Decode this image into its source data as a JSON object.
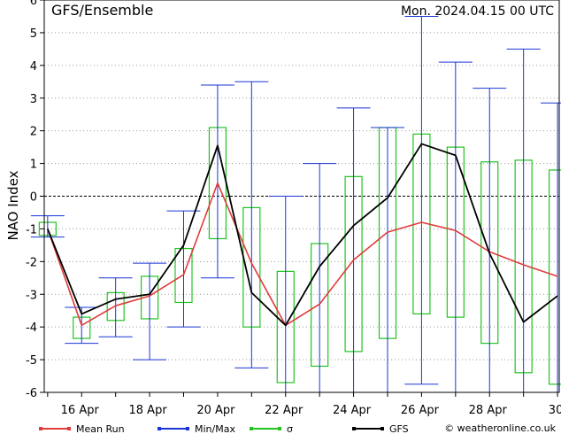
{
  "header": {
    "title": "GFS/Ensemble",
    "timestamp": "Mon. 2024.04.15   00 UTC"
  },
  "chart_data": {
    "type": "line",
    "ylabel": "NAO Index",
    "ylim": [
      -6,
      6
    ],
    "yticks": [
      6,
      5,
      4,
      3,
      2,
      1,
      0,
      -1,
      -2,
      -3,
      -4,
      -5,
      -6
    ],
    "xlim": [
      14.9,
      30.05
    ],
    "xticks": [
      {
        "x": 16,
        "label": "16 Apr"
      },
      {
        "x": 18,
        "label": "18 Apr"
      },
      {
        "x": 20,
        "label": "20 Apr"
      },
      {
        "x": 22,
        "label": "22 Apr"
      },
      {
        "x": 24,
        "label": "24 Apr"
      },
      {
        "x": 26,
        "label": "26 Apr"
      },
      {
        "x": 28,
        "label": "28 Apr"
      },
      {
        "x": 30,
        "label": "30"
      }
    ],
    "grid": true,
    "x": [
      15,
      16,
      17,
      18,
      19,
      20,
      21,
      22,
      23,
      24,
      25,
      26,
      27,
      28,
      29,
      30
    ],
    "series": [
      {
        "name": "Mean Run",
        "color": "#e03c3c",
        "values": [
          -1.0,
          -3.95,
          -3.35,
          -3.05,
          -2.4,
          0.4,
          -2.05,
          -3.95,
          -3.3,
          -1.95,
          -1.1,
          -0.8,
          -1.05,
          -1.7,
          -2.1,
          -2.45
        ]
      },
      {
        "name": "GFS",
        "color": "#000000",
        "values": [
          -1.0,
          -3.6,
          -3.15,
          -3.0,
          -1.5,
          1.55,
          -2.95,
          -3.95,
          -2.15,
          -0.9,
          -0.05,
          1.6,
          1.25,
          -1.75,
          -3.85,
          -3.05
        ]
      }
    ],
    "minmax": {
      "name": "Min/Max",
      "color": "#1a35d6",
      "min": [
        -1.25,
        -4.5,
        -4.3,
        -5.0,
        -4.0,
        -2.5,
        -5.25,
        -6.0,
        -6.0,
        -6.0,
        -6.0,
        -5.75,
        -6.0,
        -6.0,
        -6.0,
        -6.0
      ],
      "max": [
        -0.6,
        -3.4,
        -2.5,
        -2.05,
        -0.45,
        3.4,
        3.5,
        0.0,
        1.0,
        2.7,
        2.1,
        5.5,
        4.1,
        3.3,
        4.5,
        2.85
      ]
    },
    "sigma": {
      "name": "σ",
      "color": "#22c422",
      "low": [
        -1.2,
        -4.35,
        -3.8,
        -3.75,
        -3.25,
        -1.3,
        -4.0,
        -5.7,
        -5.2,
        -4.75,
        -4.35,
        -3.6,
        -3.7,
        -4.5,
        -5.4,
        -5.75
      ],
      "high": [
        -0.8,
        -3.7,
        -2.95,
        -2.45,
        -1.6,
        2.1,
        -0.35,
        -2.3,
        -1.45,
        0.6,
        2.1,
        1.9,
        1.5,
        1.05,
        1.1,
        0.8
      ]
    },
    "legend": {
      "placement": "bottom",
      "items": [
        {
          "label": "Mean Run",
          "color": "#e03c3c"
        },
        {
          "label": "Min/Max",
          "color": "#1a35d6"
        },
        {
          "label": "σ",
          "color": "#22c422"
        },
        {
          "label": "GFS",
          "color": "#000000"
        }
      ]
    },
    "credit": "© weatheronline.co.uk"
  }
}
